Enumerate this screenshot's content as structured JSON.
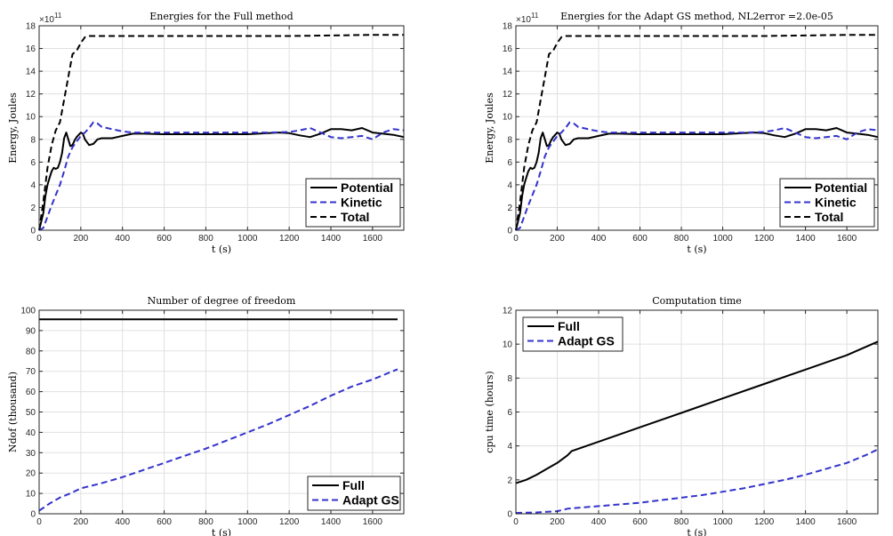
{
  "chart_data": [
    {
      "type": "line",
      "title": "Energies for the Full method",
      "xlabel": "t (s)",
      "ylabel": "Energy, Joules",
      "xlim": [
        0,
        1750
      ],
      "ylim": [
        0,
        18
      ],
      "xticks": [
        0,
        200,
        400,
        600,
        800,
        1000,
        1200,
        1400,
        1600
      ],
      "yticks": [
        0,
        2,
        4,
        6,
        8,
        10,
        12,
        14,
        16,
        18
      ],
      "y_exponent_label": "×10",
      "y_exponent": "11",
      "legend_position": "bottom-right",
      "series": [
        {
          "name": "Potential",
          "color": "#000000",
          "style": "solid",
          "x": [
            0,
            20,
            30,
            40,
            50,
            60,
            70,
            80,
            90,
            100,
            110,
            120,
            130,
            140,
            150,
            160,
            170,
            180,
            190,
            200,
            210,
            220,
            240,
            260,
            280,
            300,
            350,
            400,
            450,
            500,
            600,
            700,
            800,
            900,
            1000,
            1100,
            1150,
            1200,
            1250,
            1300,
            1350,
            1400,
            1450,
            1500,
            1550,
            1600,
            1650,
            1700,
            1750
          ],
          "y": [
            0,
            1.5,
            3.0,
            4.0,
            4.6,
            5.2,
            5.5,
            5.4,
            5.5,
            6.0,
            6.8,
            8.1,
            8.6,
            8.0,
            7.4,
            7.5,
            7.9,
            8.2,
            8.4,
            8.6,
            8.5,
            8.0,
            7.5,
            7.6,
            8.0,
            8.1,
            8.1,
            8.3,
            8.5,
            8.5,
            8.45,
            8.45,
            8.45,
            8.45,
            8.45,
            8.55,
            8.6,
            8.55,
            8.35,
            8.2,
            8.5,
            8.9,
            8.9,
            8.8,
            9.0,
            8.6,
            8.5,
            8.4,
            8.2
          ]
        },
        {
          "name": "Kinetic",
          "color": "#3333cc",
          "style": "dashed",
          "x": [
            0,
            20,
            40,
            60,
            80,
            100,
            120,
            140,
            160,
            180,
            200,
            220,
            240,
            260,
            280,
            300,
            350,
            400,
            450,
            500,
            600,
            700,
            800,
            900,
            1000,
            1100,
            1200,
            1250,
            1300,
            1350,
            1400,
            1450,
            1500,
            1550,
            1600,
            1650,
            1700,
            1750
          ],
          "y": [
            0,
            0.2,
            1.2,
            2.2,
            3.1,
            4.0,
            5.2,
            6.5,
            7.3,
            7.8,
            8.3,
            8.6,
            9.0,
            9.5,
            9.4,
            9.1,
            8.9,
            8.7,
            8.6,
            8.6,
            8.6,
            8.6,
            8.6,
            8.6,
            8.6,
            8.6,
            8.65,
            8.8,
            9.0,
            8.6,
            8.2,
            8.1,
            8.2,
            8.3,
            8.0,
            8.6,
            8.9,
            8.8
          ]
        },
        {
          "name": "Total",
          "color": "#000000",
          "style": "dashed",
          "x": [
            0,
            20,
            40,
            60,
            80,
            100,
            120,
            140,
            160,
            180,
            200,
            220,
            240,
            260,
            300,
            400,
            600,
            800,
            1000,
            1200,
            1400,
            1600,
            1750
          ],
          "y": [
            0,
            2.5,
            5.5,
            7.5,
            8.8,
            9.5,
            11.5,
            13.5,
            15.5,
            15.8,
            16.5,
            17.0,
            17.1,
            17.1,
            17.1,
            17.1,
            17.1,
            17.1,
            17.1,
            17.1,
            17.15,
            17.2,
            17.2
          ]
        }
      ]
    },
    {
      "type": "line",
      "title": "Energies for the Adapt GS method, NL2error =2.0e-05",
      "xlabel": "t (s)",
      "ylabel": "Energy, Joules",
      "xlim": [
        0,
        1750
      ],
      "ylim": [
        0,
        18
      ],
      "xticks": [
        0,
        200,
        400,
        600,
        800,
        1000,
        1200,
        1400,
        1600
      ],
      "yticks": [
        0,
        2,
        4,
        6,
        8,
        10,
        12,
        14,
        16,
        18
      ],
      "y_exponent_label": "×10",
      "y_exponent": "11",
      "legend_position": "bottom-right",
      "series": [
        {
          "name": "Potential",
          "color": "#000000",
          "style": "solid",
          "x": [
            0,
            20,
            30,
            40,
            50,
            60,
            70,
            80,
            90,
            100,
            110,
            120,
            130,
            140,
            150,
            160,
            170,
            180,
            190,
            200,
            210,
            220,
            240,
            260,
            280,
            300,
            350,
            400,
            450,
            500,
            600,
            700,
            800,
            900,
            1000,
            1100,
            1150,
            1200,
            1250,
            1300,
            1350,
            1400,
            1450,
            1500,
            1550,
            1600,
            1650,
            1700,
            1750
          ],
          "y": [
            0,
            1.5,
            3.0,
            4.0,
            4.6,
            5.2,
            5.5,
            5.4,
            5.5,
            6.0,
            6.8,
            8.1,
            8.6,
            8.0,
            7.4,
            7.5,
            7.9,
            8.2,
            8.4,
            8.6,
            8.5,
            8.0,
            7.5,
            7.6,
            8.0,
            8.1,
            8.1,
            8.3,
            8.5,
            8.5,
            8.45,
            8.45,
            8.45,
            8.45,
            8.45,
            8.55,
            8.6,
            8.55,
            8.35,
            8.2,
            8.5,
            8.9,
            8.9,
            8.8,
            9.0,
            8.6,
            8.5,
            8.4,
            8.2
          ]
        },
        {
          "name": "Kinetic",
          "color": "#3333cc",
          "style": "dashed",
          "x": [
            0,
            20,
            40,
            60,
            80,
            100,
            120,
            140,
            160,
            180,
            200,
            220,
            240,
            260,
            280,
            300,
            350,
            400,
            450,
            500,
            600,
            700,
            800,
            900,
            1000,
            1100,
            1200,
            1250,
            1300,
            1350,
            1400,
            1450,
            1500,
            1550,
            1600,
            1650,
            1700,
            1750
          ],
          "y": [
            0,
            0.2,
            1.2,
            2.2,
            3.1,
            4.0,
            5.2,
            6.5,
            7.3,
            7.8,
            8.3,
            8.6,
            9.0,
            9.5,
            9.4,
            9.1,
            8.9,
            8.7,
            8.6,
            8.6,
            8.6,
            8.6,
            8.6,
            8.6,
            8.6,
            8.6,
            8.65,
            8.8,
            9.0,
            8.6,
            8.2,
            8.1,
            8.2,
            8.3,
            8.0,
            8.6,
            8.9,
            8.8
          ]
        },
        {
          "name": "Total",
          "color": "#000000",
          "style": "dashed",
          "x": [
            0,
            20,
            40,
            60,
            80,
            100,
            120,
            140,
            160,
            180,
            200,
            220,
            240,
            260,
            300,
            400,
            600,
            800,
            1000,
            1200,
            1400,
            1600,
            1750
          ],
          "y": [
            0,
            2.5,
            5.5,
            7.5,
            8.8,
            9.5,
            11.5,
            13.5,
            15.5,
            15.8,
            16.5,
            17.0,
            17.1,
            17.1,
            17.1,
            17.1,
            17.1,
            17.1,
            17.1,
            17.1,
            17.15,
            17.2,
            17.2
          ]
        }
      ]
    },
    {
      "type": "line",
      "title": "Number of degree of freedom",
      "xlabel": "t (s)",
      "ylabel": "Ndof (thousand)",
      "xlim": [
        0,
        1750
      ],
      "ylim": [
        0,
        100
      ],
      "xticks": [
        0,
        200,
        400,
        600,
        800,
        1000,
        1200,
        1400,
        1600
      ],
      "yticks": [
        0,
        10,
        20,
        30,
        40,
        50,
        60,
        70,
        80,
        90,
        100
      ],
      "legend_position": "bottom-right",
      "series": [
        {
          "name": "Full",
          "color": "#000000",
          "style": "solid",
          "x": [
            0,
            1720
          ],
          "y": [
            95.5,
            95.5
          ]
        },
        {
          "name": "Adapt GS",
          "color": "#3333cc",
          "style": "dashed",
          "x": [
            0,
            50,
            100,
            150,
            200,
            300,
            400,
            500,
            600,
            700,
            800,
            900,
            1000,
            1100,
            1200,
            1300,
            1400,
            1500,
            1600,
            1720
          ],
          "y": [
            1.5,
            5,
            8,
            10,
            12.5,
            15,
            18,
            21.5,
            25,
            28.5,
            32,
            36,
            40,
            44,
            48.5,
            53,
            58,
            62.5,
            66,
            71
          ]
        }
      ]
    },
    {
      "type": "line",
      "title": "Computation time",
      "xlabel": "t (s)",
      "ylabel": "cpu time (hours)",
      "xlim": [
        0,
        1750
      ],
      "ylim": [
        0,
        12
      ],
      "xticks": [
        0,
        200,
        400,
        600,
        800,
        1000,
        1200,
        1400,
        1600
      ],
      "yticks": [
        0,
        2,
        4,
        6,
        8,
        10,
        12
      ],
      "legend_position": "top-left",
      "series": [
        {
          "name": "Full",
          "color": "#000000",
          "style": "solid",
          "x": [
            0,
            50,
            100,
            150,
            200,
            250,
            270,
            400,
            600,
            800,
            1000,
            1200,
            1400,
            1600,
            1750
          ],
          "y": [
            1.8,
            2.0,
            2.3,
            2.65,
            3.0,
            3.45,
            3.7,
            4.25,
            5.1,
            5.95,
            6.8,
            7.65,
            8.5,
            9.35,
            10.15
          ]
        },
        {
          "name": "Adapt GS",
          "color": "#3333cc",
          "style": "dashed",
          "x": [
            0,
            100,
            200,
            250,
            300,
            400,
            500,
            600,
            700,
            800,
            900,
            1000,
            1100,
            1200,
            1300,
            1400,
            1500,
            1600,
            1700,
            1750
          ],
          "y": [
            0.05,
            0.08,
            0.15,
            0.3,
            0.35,
            0.45,
            0.55,
            0.65,
            0.8,
            0.95,
            1.1,
            1.3,
            1.5,
            1.75,
            2.0,
            2.3,
            2.65,
            3.0,
            3.5,
            3.8
          ]
        }
      ]
    }
  ]
}
